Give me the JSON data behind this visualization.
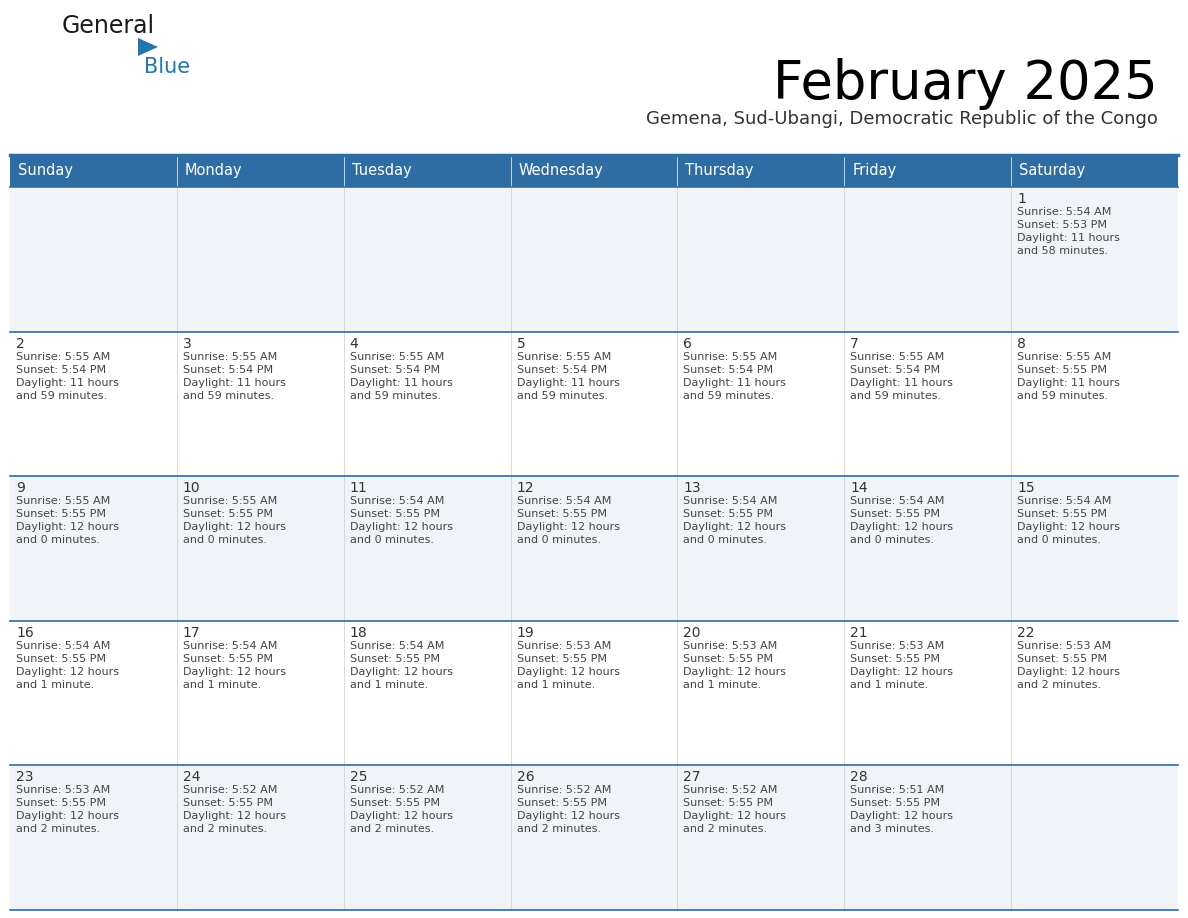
{
  "title": "February 2025",
  "subtitle": "Gemena, Sud-Ubangi, Democratic Republic of the Congo",
  "header_bg": "#2E6DA4",
  "header_text": "#FFFFFF",
  "cell_bg_light": "#F0F4F8",
  "cell_bg_white": "#FFFFFF",
  "cell_text": "#444444",
  "day_number_color": "#333333",
  "grid_line_color": "#2E6DA4",
  "logo_text_color": "#1a1a1a",
  "logo_blue_color": "#2176AE",
  "weekdays": [
    "Sunday",
    "Monday",
    "Tuesday",
    "Wednesday",
    "Thursday",
    "Friday",
    "Saturday"
  ],
  "days_data": [
    {
      "day": 1,
      "col": 6,
      "row": 0,
      "sunrise": "5:54 AM",
      "sunset": "5:53 PM",
      "daylight": "11 hours\nand 58 minutes."
    },
    {
      "day": 2,
      "col": 0,
      "row": 1,
      "sunrise": "5:55 AM",
      "sunset": "5:54 PM",
      "daylight": "11 hours\nand 59 minutes."
    },
    {
      "day": 3,
      "col": 1,
      "row": 1,
      "sunrise": "5:55 AM",
      "sunset": "5:54 PM",
      "daylight": "11 hours\nand 59 minutes."
    },
    {
      "day": 4,
      "col": 2,
      "row": 1,
      "sunrise": "5:55 AM",
      "sunset": "5:54 PM",
      "daylight": "11 hours\nand 59 minutes."
    },
    {
      "day": 5,
      "col": 3,
      "row": 1,
      "sunrise": "5:55 AM",
      "sunset": "5:54 PM",
      "daylight": "11 hours\nand 59 minutes."
    },
    {
      "day": 6,
      "col": 4,
      "row": 1,
      "sunrise": "5:55 AM",
      "sunset": "5:54 PM",
      "daylight": "11 hours\nand 59 minutes."
    },
    {
      "day": 7,
      "col": 5,
      "row": 1,
      "sunrise": "5:55 AM",
      "sunset": "5:54 PM",
      "daylight": "11 hours\nand 59 minutes."
    },
    {
      "day": 8,
      "col": 6,
      "row": 1,
      "sunrise": "5:55 AM",
      "sunset": "5:55 PM",
      "daylight": "11 hours\nand 59 minutes."
    },
    {
      "day": 9,
      "col": 0,
      "row": 2,
      "sunrise": "5:55 AM",
      "sunset": "5:55 PM",
      "daylight": "12 hours\nand 0 minutes."
    },
    {
      "day": 10,
      "col": 1,
      "row": 2,
      "sunrise": "5:55 AM",
      "sunset": "5:55 PM",
      "daylight": "12 hours\nand 0 minutes."
    },
    {
      "day": 11,
      "col": 2,
      "row": 2,
      "sunrise": "5:54 AM",
      "sunset": "5:55 PM",
      "daylight": "12 hours\nand 0 minutes."
    },
    {
      "day": 12,
      "col": 3,
      "row": 2,
      "sunrise": "5:54 AM",
      "sunset": "5:55 PM",
      "daylight": "12 hours\nand 0 minutes."
    },
    {
      "day": 13,
      "col": 4,
      "row": 2,
      "sunrise": "5:54 AM",
      "sunset": "5:55 PM",
      "daylight": "12 hours\nand 0 minutes."
    },
    {
      "day": 14,
      "col": 5,
      "row": 2,
      "sunrise": "5:54 AM",
      "sunset": "5:55 PM",
      "daylight": "12 hours\nand 0 minutes."
    },
    {
      "day": 15,
      "col": 6,
      "row": 2,
      "sunrise": "5:54 AM",
      "sunset": "5:55 PM",
      "daylight": "12 hours\nand 0 minutes."
    },
    {
      "day": 16,
      "col": 0,
      "row": 3,
      "sunrise": "5:54 AM",
      "sunset": "5:55 PM",
      "daylight": "12 hours\nand 1 minute."
    },
    {
      "day": 17,
      "col": 1,
      "row": 3,
      "sunrise": "5:54 AM",
      "sunset": "5:55 PM",
      "daylight": "12 hours\nand 1 minute."
    },
    {
      "day": 18,
      "col": 2,
      "row": 3,
      "sunrise": "5:54 AM",
      "sunset": "5:55 PM",
      "daylight": "12 hours\nand 1 minute."
    },
    {
      "day": 19,
      "col": 3,
      "row": 3,
      "sunrise": "5:53 AM",
      "sunset": "5:55 PM",
      "daylight": "12 hours\nand 1 minute."
    },
    {
      "day": 20,
      "col": 4,
      "row": 3,
      "sunrise": "5:53 AM",
      "sunset": "5:55 PM",
      "daylight": "12 hours\nand 1 minute."
    },
    {
      "day": 21,
      "col": 5,
      "row": 3,
      "sunrise": "5:53 AM",
      "sunset": "5:55 PM",
      "daylight": "12 hours\nand 1 minute."
    },
    {
      "day": 22,
      "col": 6,
      "row": 3,
      "sunrise": "5:53 AM",
      "sunset": "5:55 PM",
      "daylight": "12 hours\nand 2 minutes."
    },
    {
      "day": 23,
      "col": 0,
      "row": 4,
      "sunrise": "5:53 AM",
      "sunset": "5:55 PM",
      "daylight": "12 hours\nand 2 minutes."
    },
    {
      "day": 24,
      "col": 1,
      "row": 4,
      "sunrise": "5:52 AM",
      "sunset": "5:55 PM",
      "daylight": "12 hours\nand 2 minutes."
    },
    {
      "day": 25,
      "col": 2,
      "row": 4,
      "sunrise": "5:52 AM",
      "sunset": "5:55 PM",
      "daylight": "12 hours\nand 2 minutes."
    },
    {
      "day": 26,
      "col": 3,
      "row": 4,
      "sunrise": "5:52 AM",
      "sunset": "5:55 PM",
      "daylight": "12 hours\nand 2 minutes."
    },
    {
      "day": 27,
      "col": 4,
      "row": 4,
      "sunrise": "5:52 AM",
      "sunset": "5:55 PM",
      "daylight": "12 hours\nand 2 minutes."
    },
    {
      "day": 28,
      "col": 5,
      "row": 4,
      "sunrise": "5:51 AM",
      "sunset": "5:55 PM",
      "daylight": "12 hours\nand 3 minutes."
    }
  ]
}
